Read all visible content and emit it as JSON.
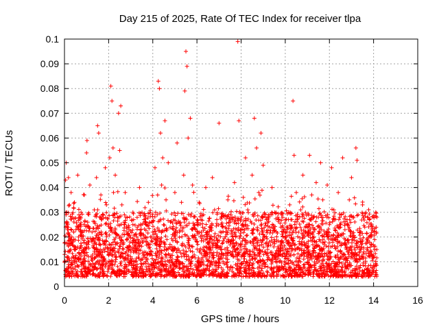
{
  "chart_data": {
    "type": "scatter",
    "title": "Day 215 of 2025, Rate Of TEC Index for receiver tlpa",
    "xlabel": "GPS time / hours",
    "ylabel": "ROTI / TECUs",
    "xlim": [
      0,
      16
    ],
    "ylim": [
      0,
      0.1
    ],
    "xticks": [
      0,
      2,
      4,
      6,
      8,
      10,
      12,
      14,
      16
    ],
    "xtick_labels": [
      "0",
      "2",
      "4",
      "6",
      "8",
      "10",
      "12",
      "14",
      "16"
    ],
    "yticks": [
      0,
      0.01,
      0.02,
      0.03,
      0.04,
      0.05,
      0.06,
      0.07,
      0.08,
      0.09,
      0.1
    ],
    "ytick_labels": [
      "0",
      "0.01",
      "0.02",
      "0.03",
      "0.04",
      "0.05",
      "0.06",
      "0.07",
      "0.08",
      "0.09",
      "0.1"
    ],
    "grid": true,
    "marker": "+",
    "color": "#ff0000",
    "series": [
      {
        "name": "ROTI",
        "x": [
          0.02,
          0.05,
          0.08,
          0.1,
          0.12,
          0.15,
          0.18,
          0.2,
          0.22,
          0.25,
          0.28,
          0.3,
          0.32,
          0.35,
          0.38,
          0.4,
          0.42,
          0.45,
          0.5,
          0.55,
          0.6,
          0.65,
          0.7,
          0.75,
          0.8,
          0.85,
          0.9,
          0.95,
          1.0,
          1.02,
          1.05,
          1.1,
          1.15,
          1.2,
          1.25,
          1.3,
          1.35,
          1.4,
          1.45,
          1.5,
          1.55,
          1.6,
          1.62,
          1.65,
          1.7,
          1.75,
          1.8,
          1.85,
          1.9,
          1.95,
          2.0,
          2.05,
          2.1,
          2.15,
          2.2,
          2.22,
          2.25,
          2.3,
          2.35,
          2.4,
          2.45,
          2.5,
          2.55,
          2.6,
          2.65,
          2.7,
          2.75,
          2.8,
          2.9,
          3.0,
          3.1,
          3.2,
          3.3,
          3.4,
          3.5,
          3.6,
          3.7,
          3.8,
          3.9,
          4.0,
          4.1,
          4.2,
          4.25,
          4.3,
          4.35,
          4.4,
          4.45,
          4.5,
          4.55,
          4.6,
          4.7,
          4.8,
          4.9,
          5.0,
          5.1,
          5.2,
          5.3,
          5.4,
          5.45,
          5.5,
          5.55,
          5.6,
          5.7,
          5.8,
          5.9,
          6.0,
          6.1,
          6.2,
          6.3,
          6.4,
          6.5,
          6.6,
          6.7,
          6.8,
          6.9,
          7.0,
          7.1,
          7.2,
          7.3,
          7.4,
          7.5,
          7.6,
          7.7,
          7.8,
          7.85,
          7.9,
          8.0,
          8.1,
          8.2,
          8.3,
          8.4,
          8.5,
          8.6,
          8.7,
          8.8,
          8.9,
          9.0,
          9.1,
          9.2,
          9.3,
          9.4,
          9.5,
          9.6,
          9.7,
          9.8,
          9.9,
          10.0,
          10.1,
          10.2,
          10.3,
          10.35,
          10.4,
          10.5,
          10.6,
          10.7,
          10.8,
          10.9,
          11.0,
          11.1,
          11.2,
          11.3,
          11.4,
          11.5,
          11.6,
          11.7,
          11.8,
          11.9,
          12.0,
          12.1,
          12.2,
          12.3,
          12.4,
          12.5,
          12.6,
          12.7,
          12.8,
          12.9,
          13.0,
          13.1,
          13.2,
          13.25,
          13.3,
          13.4,
          13.5,
          13.6,
          13.7,
          13.8,
          13.9,
          14.0,
          14.1,
          14.15
        ],
        "y": [
          0.01,
          0.043,
          0.05,
          0.03,
          0.012,
          0.025,
          0.044,
          0.008,
          0.033,
          0.02,
          0.015,
          0.038,
          0.009,
          0.028,
          0.018,
          0.012,
          0.022,
          0.034,
          0.016,
          0.01,
          0.045,
          0.024,
          0.013,
          0.03,
          0.02,
          0.011,
          0.037,
          0.015,
          0.054,
          0.059,
          0.026,
          0.018,
          0.041,
          0.012,
          0.022,
          0.016,
          0.031,
          0.009,
          0.044,
          0.065,
          0.062,
          0.028,
          0.015,
          0.037,
          0.021,
          0.012,
          0.018,
          0.048,
          0.033,
          0.014,
          0.025,
          0.052,
          0.081,
          0.075,
          0.056,
          0.038,
          0.019,
          0.045,
          0.012,
          0.028,
          0.07,
          0.055,
          0.073,
          0.033,
          0.017,
          0.026,
          0.038,
          0.014,
          0.021,
          0.012,
          0.03,
          0.016,
          0.024,
          0.04,
          0.011,
          0.027,
          0.018,
          0.034,
          0.013,
          0.022,
          0.048,
          0.029,
          0.083,
          0.08,
          0.062,
          0.041,
          0.052,
          0.018,
          0.067,
          0.035,
          0.05,
          0.026,
          0.015,
          0.038,
          0.058,
          0.022,
          0.034,
          0.045,
          0.079,
          0.095,
          0.089,
          0.06,
          0.068,
          0.041,
          0.025,
          0.018,
          0.034,
          0.022,
          0.029,
          0.04,
          0.015,
          0.024,
          0.044,
          0.031,
          0.016,
          0.066,
          0.028,
          0.013,
          0.022,
          0.035,
          0.018,
          0.027,
          0.042,
          0.015,
          0.099,
          0.067,
          0.023,
          0.036,
          0.052,
          0.031,
          0.018,
          0.045,
          0.068,
          0.056,
          0.038,
          0.062,
          0.049,
          0.028,
          0.015,
          0.024,
          0.04,
          0.019,
          0.012,
          0.027,
          0.016,
          0.022,
          0.009,
          0.018,
          0.033,
          0.027,
          0.075,
          0.053,
          0.038,
          0.022,
          0.031,
          0.045,
          0.024,
          0.016,
          0.053,
          0.037,
          0.02,
          0.042,
          0.028,
          0.05,
          0.035,
          0.018,
          0.041,
          0.025,
          0.048,
          0.031,
          0.019,
          0.038,
          0.024,
          0.052,
          0.017,
          0.027,
          0.035,
          0.044,
          0.02,
          0.056,
          0.051,
          0.029,
          0.018,
          0.033,
          0.024,
          0.015,
          0.027,
          0.021,
          0.012,
          0.03,
          0.028
        ]
      }
    ]
  }
}
